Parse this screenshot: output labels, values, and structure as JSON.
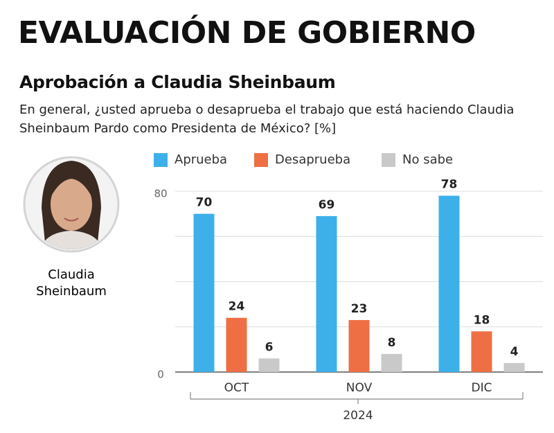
{
  "chart_data": {
    "type": "bar",
    "title": "EVALUACIÓN DE GOBIERNO",
    "subtitle": "Aprobación a Claudia Sheinbaum",
    "question": "En general, ¿usted aprueba o desaprueba el trabajo que está haciendo Claudia Sheinbaum Pardo como Presidenta de México? [%]",
    "photo_caption": [
      "Claudia",
      "Sheinbaum"
    ],
    "categories": [
      "OCT",
      "NOV",
      "DIC"
    ],
    "xlabel": "2024",
    "series": [
      {
        "name": "Aprueba",
        "color": "#3db0ea",
        "values": [
          70,
          69,
          78
        ]
      },
      {
        "name": "Desaprueba",
        "color": "#ef6f45",
        "values": [
          24,
          23,
          18
        ]
      },
      {
        "name": "No sabe",
        "color": "#c9c9c9",
        "values": [
          6,
          8,
          4
        ]
      }
    ],
    "ylim": [
      0,
      80
    ],
    "yticks": [
      0,
      80
    ],
    "ygrid": [
      20,
      40,
      60,
      80
    ],
    "grid": true,
    "legend": "top"
  }
}
